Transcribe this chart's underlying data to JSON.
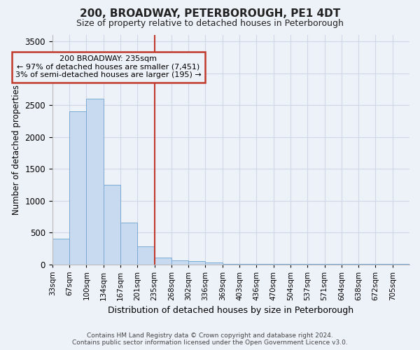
{
  "title": "200, BROADWAY, PETERBOROUGH, PE1 4DT",
  "subtitle": "Size of property relative to detached houses in Peterborough",
  "xlabel": "Distribution of detached houses by size in Peterborough",
  "ylabel": "Number of detached properties",
  "footer_line1": "Contains HM Land Registry data © Crown copyright and database right 2024.",
  "footer_line2": "Contains public sector information licensed under the Open Government Licence v3.0.",
  "annotation_title": "200 BROADWAY: 235sqm",
  "annotation_line1": "← 97% of detached houses are smaller (7,451)",
  "annotation_line2": "3% of semi-detached houses are larger (195) →",
  "bin_labels": [
    "33sqm",
    "67sqm",
    "100sqm",
    "134sqm",
    "167sqm",
    "201sqm",
    "235sqm",
    "268sqm",
    "302sqm",
    "336sqm",
    "369sqm",
    "403sqm",
    "436sqm",
    "470sqm",
    "504sqm",
    "537sqm",
    "571sqm",
    "604sqm",
    "638sqm",
    "672sqm",
    "705sqm"
  ],
  "values": [
    400,
    2400,
    2600,
    1250,
    650,
    275,
    110,
    60,
    50,
    30,
    5,
    5,
    5,
    5,
    5,
    5,
    5,
    5,
    5,
    5,
    5
  ],
  "bar_color": "#c8daf0",
  "bar_edge_color": "#7aaad4",
  "vline_index": 6,
  "vline_color": "#c0392b",
  "annotation_box_edge_color": "#c0392b",
  "grid_color": "#d0d8e8",
  "bg_color": "#edf1f8",
  "ylim": [
    0,
    3600
  ],
  "yticks": [
    0,
    500,
    1000,
    1500,
    2000,
    2500,
    3000,
    3500
  ]
}
